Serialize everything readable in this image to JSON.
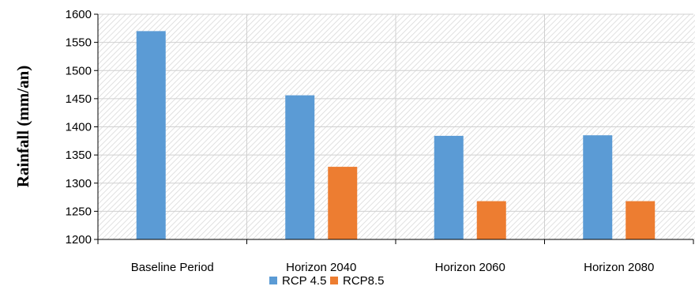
{
  "chart_data": {
    "type": "bar",
    "categories": [
      "Baseline Period",
      "Horizon 2040",
      "Horizon 2060",
      "Horizon 2080"
    ],
    "series": [
      {
        "name": "RCP 4.5",
        "color": "#5b9bd5",
        "values": [
          1570,
          1456,
          1384,
          1385
        ]
      },
      {
        "name": "RCP8.5",
        "color": "#ed7d31",
        "values": [
          null,
          1329,
          1268,
          1268
        ]
      }
    ],
    "title": "",
    "xlabel": "",
    "ylabel": "Rainfall (mm/an)",
    "ylim": [
      1200,
      1600
    ],
    "yticks": [
      1200,
      1250,
      1300,
      1350,
      1400,
      1450,
      1500,
      1550,
      1600
    ],
    "grid": true,
    "legend_position": "bottom"
  }
}
